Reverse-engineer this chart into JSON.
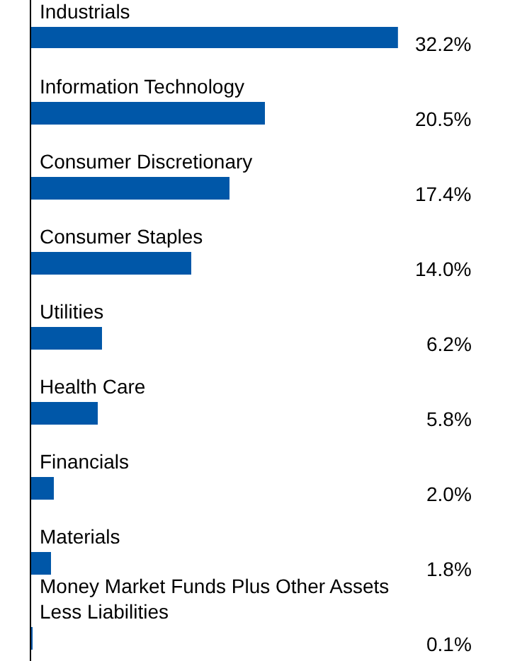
{
  "chart_data": {
    "type": "bar",
    "orientation": "horizontal",
    "categories": [
      "Industrials",
      "Information Technology",
      "Consumer Discretionary",
      "Consumer Staples",
      "Utilities",
      "Health Care",
      "Financials",
      "Materials",
      "Money Market Funds Plus Other Assets Less Liabilities"
    ],
    "values": [
      32.2,
      20.5,
      17.4,
      14.0,
      6.2,
      5.8,
      2.0,
      1.8,
      0.1
    ],
    "value_labels": [
      "32.2%",
      "20.5%",
      "17.4%",
      "14.0%",
      "6.2%",
      "5.8%",
      "2.0%",
      "1.8%",
      "0.1%"
    ],
    "color": "#0057a8",
    "grid": false,
    "legend": false
  }
}
